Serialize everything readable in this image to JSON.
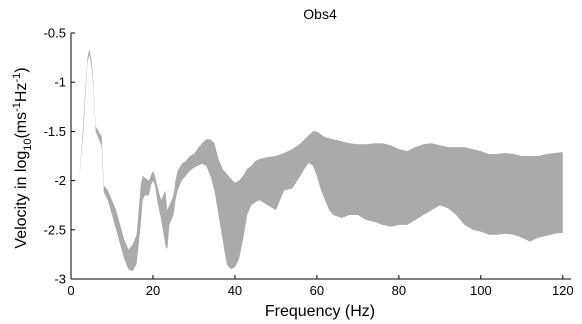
{
  "chart_data": {
    "type": "area",
    "title": "Obs4",
    "xlabel": "Frequency (Hz)",
    "ylabel_parts": [
      "Velocity in log",
      "10",
      "(ms",
      "-1",
      "Hz",
      "-1",
      ")"
    ],
    "xlim": [
      0,
      122
    ],
    "ylim": [
      -3,
      -0.5
    ],
    "xticks": [
      0,
      20,
      40,
      60,
      80,
      100,
      120
    ],
    "yticks": [
      -3,
      -2.5,
      -2,
      -1.5,
      -1,
      -0.5
    ],
    "xtick_labels": [
      "0",
      "20",
      "40",
      "60",
      "80",
      "100",
      "120"
    ],
    "ytick_labels": [
      "-3",
      "-2.5",
      "-2",
      "-1.5",
      "-1",
      "-0.5"
    ],
    "fill_color": "#aaaaaa",
    "series": [
      {
        "role": "upper_envelope",
        "x": [
          2,
          3,
          4,
          4.5,
          5,
          5.5,
          6,
          6.5,
          7,
          7.5,
          8,
          9,
          10,
          11,
          12,
          13,
          14,
          15,
          16,
          17,
          17.5,
          18,
          19,
          19.5,
          20,
          20.5,
          21,
          22,
          23,
          23.5,
          24,
          25,
          25.5,
          26,
          27,
          28,
          29,
          30,
          31,
          32,
          33,
          34,
          35,
          36,
          37,
          38,
          39,
          40,
          41,
          42,
          43,
          44,
          45,
          46,
          48,
          50,
          52,
          54,
          56,
          57,
          58,
          59,
          60,
          61,
          62,
          63,
          64,
          66,
          68,
          70,
          72,
          74,
          76,
          78,
          80,
          82,
          84,
          86,
          88,
          90,
          92,
          94,
          96,
          98,
          100,
          102,
          104,
          106,
          108,
          110,
          112,
          114,
          116,
          118,
          120
        ],
        "y": [
          -2.0,
          -1.4,
          -0.75,
          -0.66,
          -0.78,
          -1.0,
          -1.45,
          -1.48,
          -1.52,
          -1.55,
          -2.05,
          -2.1,
          -2.2,
          -2.3,
          -2.45,
          -2.6,
          -2.7,
          -2.65,
          -2.55,
          -2.05,
          -1.95,
          -1.97,
          -2.0,
          -1.95,
          -1.9,
          -1.95,
          -2.05,
          -2.2,
          -2.1,
          -2.3,
          -2.25,
          -2.15,
          -2.0,
          -1.9,
          -1.83,
          -1.8,
          -1.75,
          -1.73,
          -1.67,
          -1.62,
          -1.58,
          -1.58,
          -1.62,
          -1.78,
          -1.88,
          -1.93,
          -1.98,
          -2.02,
          -2.0,
          -1.95,
          -1.88,
          -1.85,
          -1.8,
          -1.78,
          -1.76,
          -1.75,
          -1.72,
          -1.68,
          -1.62,
          -1.58,
          -1.54,
          -1.5,
          -1.5,
          -1.53,
          -1.56,
          -1.57,
          -1.58,
          -1.6,
          -1.62,
          -1.63,
          -1.63,
          -1.62,
          -1.62,
          -1.64,
          -1.68,
          -1.7,
          -1.66,
          -1.63,
          -1.62,
          -1.64,
          -1.66,
          -1.66,
          -1.66,
          -1.68,
          -1.7,
          -1.73,
          -1.73,
          -1.72,
          -1.73,
          -1.75,
          -1.75,
          -1.75,
          -1.73,
          -1.72,
          -1.71
        ]
      },
      {
        "role": "lower_envelope",
        "x": [
          2,
          3,
          4,
          4.5,
          5,
          5.5,
          6,
          6.5,
          7,
          7.5,
          8,
          9,
          10,
          11,
          12,
          13,
          14,
          15,
          16,
          17,
          17.5,
          18,
          19,
          19.5,
          20,
          20.5,
          21,
          22,
          23,
          23.5,
          24,
          25,
          25.5,
          26,
          27,
          28,
          29,
          30,
          31,
          32,
          33,
          34,
          35,
          36,
          37,
          38,
          39,
          40,
          41,
          42,
          43,
          44,
          45,
          46,
          48,
          50,
          52,
          54,
          56,
          57,
          58,
          59,
          60,
          61,
          62,
          63,
          64,
          66,
          68,
          70,
          72,
          74,
          76,
          78,
          80,
          82,
          84,
          86,
          88,
          90,
          92,
          94,
          96,
          98,
          100,
          102,
          104,
          106,
          108,
          110,
          112,
          114,
          116,
          118,
          120
        ],
        "y": [
          -2.0,
          -1.5,
          -0.8,
          -0.72,
          -0.85,
          -1.05,
          -1.5,
          -1.55,
          -1.6,
          -1.65,
          -2.12,
          -2.2,
          -2.35,
          -2.5,
          -2.65,
          -2.8,
          -2.9,
          -2.92,
          -2.85,
          -2.45,
          -2.2,
          -2.15,
          -2.15,
          -2.05,
          -2.0,
          -2.05,
          -2.2,
          -2.4,
          -2.65,
          -2.7,
          -2.45,
          -2.35,
          -2.2,
          -2.1,
          -2.0,
          -1.95,
          -1.9,
          -1.87,
          -1.85,
          -1.83,
          -1.85,
          -1.95,
          -2.1,
          -2.35,
          -2.6,
          -2.85,
          -2.9,
          -2.88,
          -2.8,
          -2.6,
          -2.35,
          -2.25,
          -2.22,
          -2.2,
          -2.25,
          -2.3,
          -2.1,
          -2.08,
          -1.95,
          -1.88,
          -1.82,
          -1.85,
          -1.95,
          -2.1,
          -2.2,
          -2.3,
          -2.35,
          -2.38,
          -2.35,
          -2.35,
          -2.4,
          -2.42,
          -2.45,
          -2.47,
          -2.45,
          -2.45,
          -2.4,
          -2.35,
          -2.3,
          -2.25,
          -2.28,
          -2.35,
          -2.45,
          -2.5,
          -2.52,
          -2.55,
          -2.55,
          -2.54,
          -2.55,
          -2.58,
          -2.62,
          -2.58,
          -2.56,
          -2.54,
          -2.53
        ]
      }
    ]
  }
}
